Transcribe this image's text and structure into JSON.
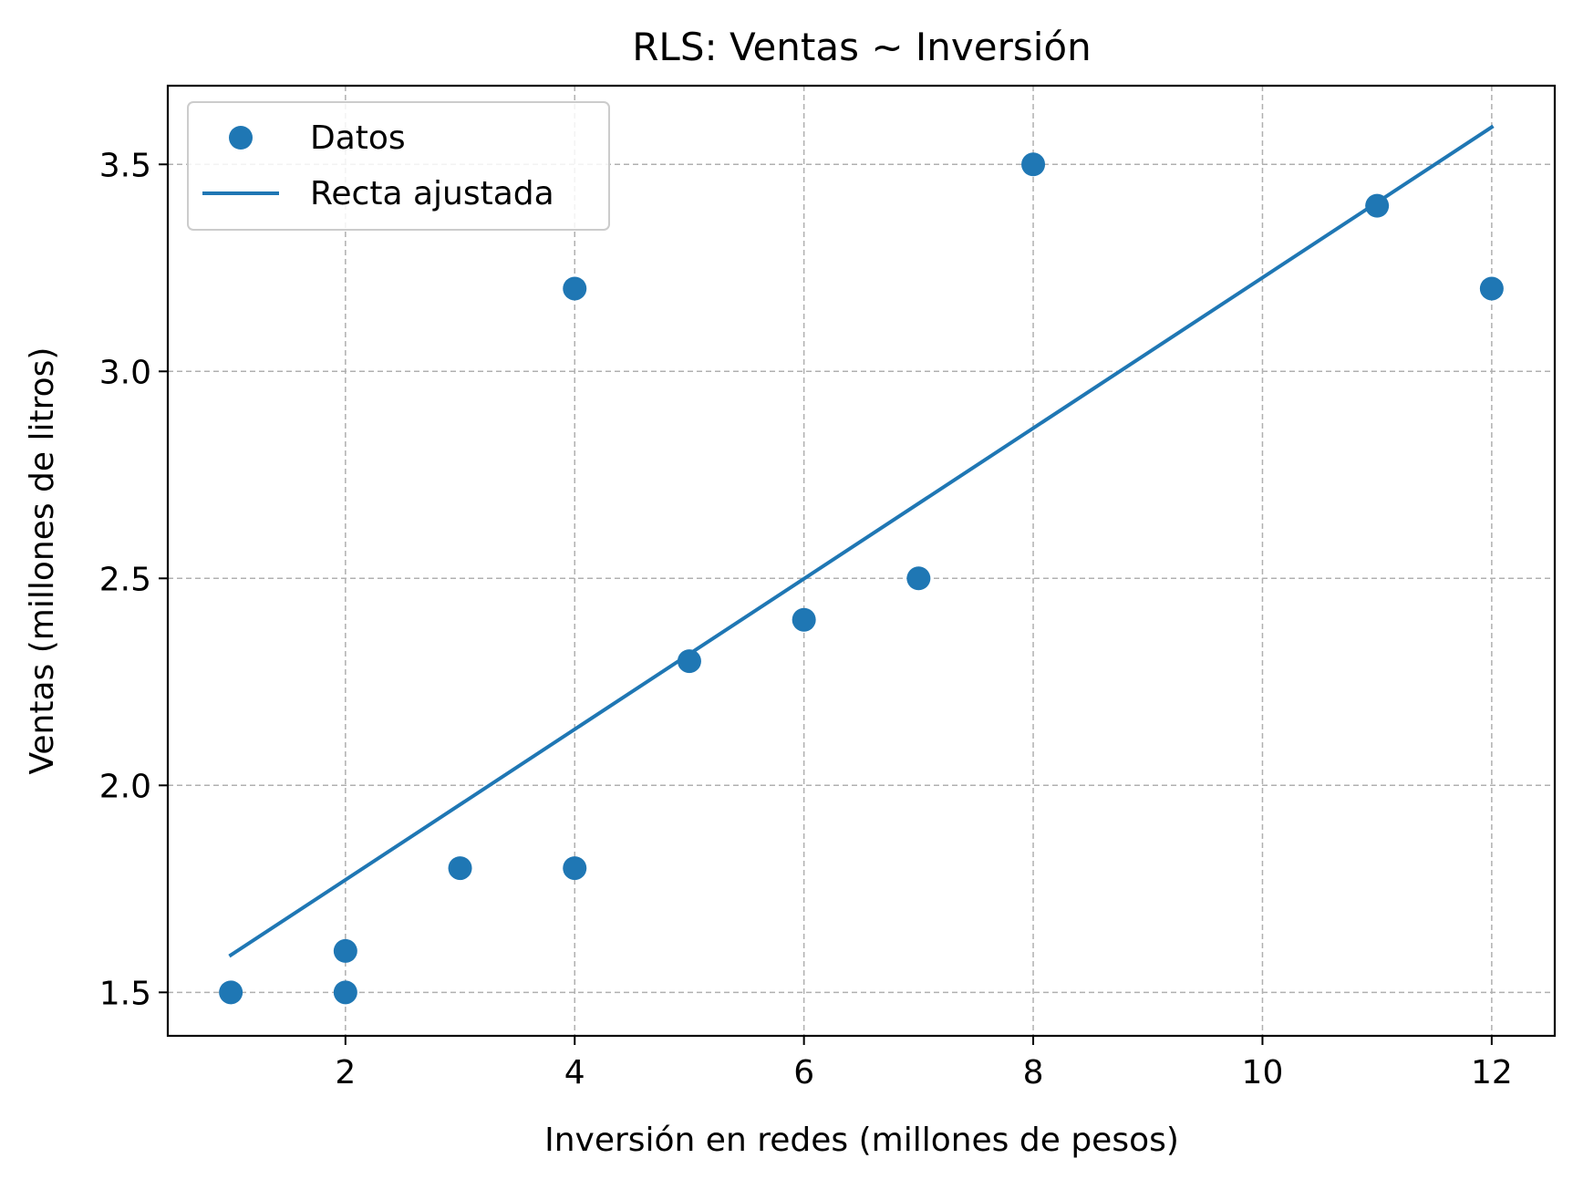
{
  "chart_data": {
    "type": "scatter",
    "title": "RLS: Ventas ~ Inversión",
    "xlabel": "Inversión en redes (millones de pesos)",
    "ylabel": "Ventas (millones de litros)",
    "xlim": [
      0.45,
      12.55
    ],
    "ylim": [
      1.395,
      3.69
    ],
    "x_ticks": [
      2,
      4,
      6,
      8,
      10,
      12
    ],
    "y_ticks": [
      1.5,
      2.0,
      2.5,
      3.0,
      3.5
    ],
    "x_tick_labels": [
      "2",
      "4",
      "6",
      "8",
      "10",
      "12"
    ],
    "y_tick_labels": [
      "1.5",
      "2.0",
      "2.5",
      "3.0",
      "3.5"
    ],
    "grid": true,
    "legend_position": "upper-left",
    "series": [
      {
        "name": "Datos",
        "kind": "scatter",
        "color": "#1f77b4",
        "points": [
          {
            "x": 1,
            "y": 1.5
          },
          {
            "x": 2,
            "y": 1.5
          },
          {
            "x": 2,
            "y": 1.6
          },
          {
            "x": 3,
            "y": 1.8
          },
          {
            "x": 4,
            "y": 1.8
          },
          {
            "x": 4,
            "y": 3.2
          },
          {
            "x": 5,
            "y": 2.3
          },
          {
            "x": 6,
            "y": 2.4
          },
          {
            "x": 7,
            "y": 2.5
          },
          {
            "x": 8,
            "y": 3.5
          },
          {
            "x": 11,
            "y": 3.4
          },
          {
            "x": 12,
            "y": 3.2
          }
        ]
      },
      {
        "name": "Recta ajustada",
        "kind": "line",
        "color": "#1f77b4",
        "points": [
          {
            "x": 1,
            "y": 1.59
          },
          {
            "x": 12,
            "y": 3.59
          }
        ]
      }
    ]
  }
}
